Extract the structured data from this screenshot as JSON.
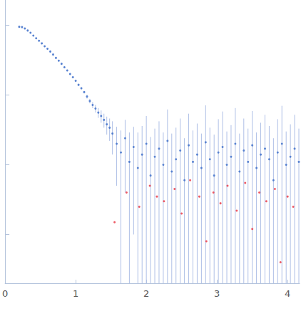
{
  "chart_data": {
    "type": "scatter",
    "log": "y",
    "grid": false,
    "tick_labels": "x",
    "xlim": [
      0,
      4.17
    ],
    "xticks": [
      0,
      1,
      2,
      3,
      4
    ],
    "ylim": [
      0.0002,
      2.3
    ],
    "yticks": [
      0.001,
      0.01,
      0.1,
      1
    ],
    "series": [
      {
        "color": "#3a6cc8",
        "marker": "circle",
        "x": [
          0.2,
          0.24,
          0.28,
          0.32,
          0.36,
          0.4,
          0.44,
          0.48,
          0.52,
          0.56,
          0.6,
          0.64,
          0.68,
          0.72,
          0.76,
          0.8,
          0.84,
          0.88,
          0.92,
          0.96,
          1.0,
          1.04,
          1.08,
          1.12,
          1.16,
          1.2,
          1.24,
          1.28,
          1.32,
          1.36,
          1.4,
          1.44,
          1.48,
          1.52,
          1.58,
          1.64,
          1.7,
          1.76,
          1.82,
          1.88,
          1.94,
          2.0,
          2.06,
          2.12,
          2.18,
          2.24,
          2.3,
          2.36,
          2.42,
          2.48,
          2.54,
          2.6,
          2.66,
          2.72,
          2.78,
          2.84,
          2.9,
          2.96,
          3.02,
          3.08,
          3.14,
          3.2,
          3.26,
          3.32,
          3.38,
          3.44,
          3.5,
          3.56,
          3.62,
          3.68,
          3.74,
          3.8,
          3.86,
          3.92,
          3.98,
          4.04,
          4.1,
          4.16
        ],
        "values": [
          0.95,
          0.94,
          0.9,
          0.84,
          0.78,
          0.71,
          0.65,
          0.6,
          0.55,
          0.5,
          0.46,
          0.42,
          0.38,
          0.34,
          0.31,
          0.28,
          0.25,
          0.225,
          0.2,
          0.18,
          0.16,
          0.14,
          0.125,
          0.11,
          0.095,
          0.082,
          0.072,
          0.064,
          0.056,
          0.05,
          0.044,
          0.038,
          0.034,
          0.028,
          0.02,
          0.015,
          0.024,
          0.011,
          0.018,
          0.009,
          0.014,
          0.02,
          0.007,
          0.013,
          0.017,
          0.01,
          0.022,
          0.008,
          0.012,
          0.016,
          0.006,
          0.019,
          0.011,
          0.014,
          0.009,
          0.021,
          0.012,
          0.007,
          0.015,
          0.018,
          0.01,
          0.013,
          0.02,
          0.008,
          0.016,
          0.011,
          0.019,
          0.009,
          0.014,
          0.017,
          0.012,
          0.006,
          0.015,
          0.02,
          0.01,
          0.013,
          0.017,
          0.011
        ],
        "errors": [
          0.03,
          0.03,
          0.025,
          0.02,
          0.02,
          0.015,
          0.015,
          0.012,
          0.012,
          0.01,
          0.01,
          0.01,
          0.008,
          0.008,
          0.008,
          0.007,
          0.007,
          0.006,
          0.006,
          0.006,
          0.005,
          0.005,
          0.005,
          0.005,
          0.006,
          0.006,
          0.007,
          0.008,
          0.009,
          0.01,
          0.01,
          0.011,
          0.012,
          0.014,
          0.015,
          0.016,
          0.02,
          0.018,
          0.017,
          0.02,
          0.022,
          0.03,
          0.018,
          0.02,
          0.025,
          0.019,
          0.04,
          0.02,
          0.022,
          0.03,
          0.018,
          0.035,
          0.02,
          0.025,
          0.019,
          0.05,
          0.022,
          0.02,
          0.03,
          0.04,
          0.02,
          0.024,
          0.045,
          0.02,
          0.03,
          0.022,
          0.04,
          0.02,
          0.026,
          0.035,
          0.024,
          0.018,
          0.03,
          0.05,
          0.02,
          0.025,
          0.035,
          0.022
        ]
      },
      {
        "color": "#e8313e",
        "marker": "circle",
        "x": [
          1.55,
          1.72,
          1.9,
          2.05,
          2.15,
          2.25,
          2.4,
          2.5,
          2.62,
          2.75,
          2.85,
          2.95,
          3.05,
          3.15,
          3.28,
          3.4,
          3.5,
          3.6,
          3.7,
          3.82,
          3.9,
          4.0,
          4.08
        ],
        "values": [
          0.0015,
          0.004,
          0.0025,
          0.005,
          0.0035,
          0.003,
          0.0045,
          0.002,
          0.006,
          0.0035,
          0.0008,
          0.004,
          0.0028,
          0.005,
          0.0022,
          0.0055,
          0.0012,
          0.004,
          0.003,
          0.0045,
          0.0004,
          0.0035,
          0.0025
        ]
      }
    ]
  }
}
